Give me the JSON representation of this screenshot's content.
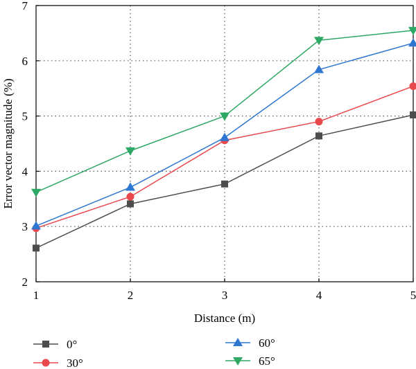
{
  "chart_data": {
    "type": "line",
    "title": "",
    "xlabel": "Distance (m)",
    "ylabel": "Error vector magnitude (%)",
    "x": [
      1,
      2,
      3,
      4,
      5
    ],
    "xlim": [
      1,
      5
    ],
    "ylim": [
      2,
      7
    ],
    "xticks": [
      "1",
      "2",
      "3",
      "4",
      "5"
    ],
    "yticks": [
      "2",
      "3",
      "4",
      "5",
      "6",
      "7"
    ],
    "grid": "dotted",
    "legend_placement": "bottom",
    "series": [
      {
        "name": "0°",
        "color": "#4d4d4d",
        "marker": "square",
        "values": [
          2.61,
          3.41,
          3.77,
          4.64,
          5.02
        ]
      },
      {
        "name": "30°",
        "color": "#e8474c",
        "marker": "circle",
        "values": [
          2.97,
          3.54,
          4.56,
          4.9,
          5.54
        ]
      },
      {
        "name": "60°",
        "color": "#2e77d0",
        "marker": "triangle-up",
        "values": [
          3.01,
          3.71,
          4.61,
          5.84,
          6.32
        ]
      },
      {
        "name": "65°",
        "color": "#2ea865",
        "marker": "triangle-down",
        "values": [
          3.62,
          4.37,
          5.0,
          6.37,
          6.55
        ]
      }
    ]
  }
}
